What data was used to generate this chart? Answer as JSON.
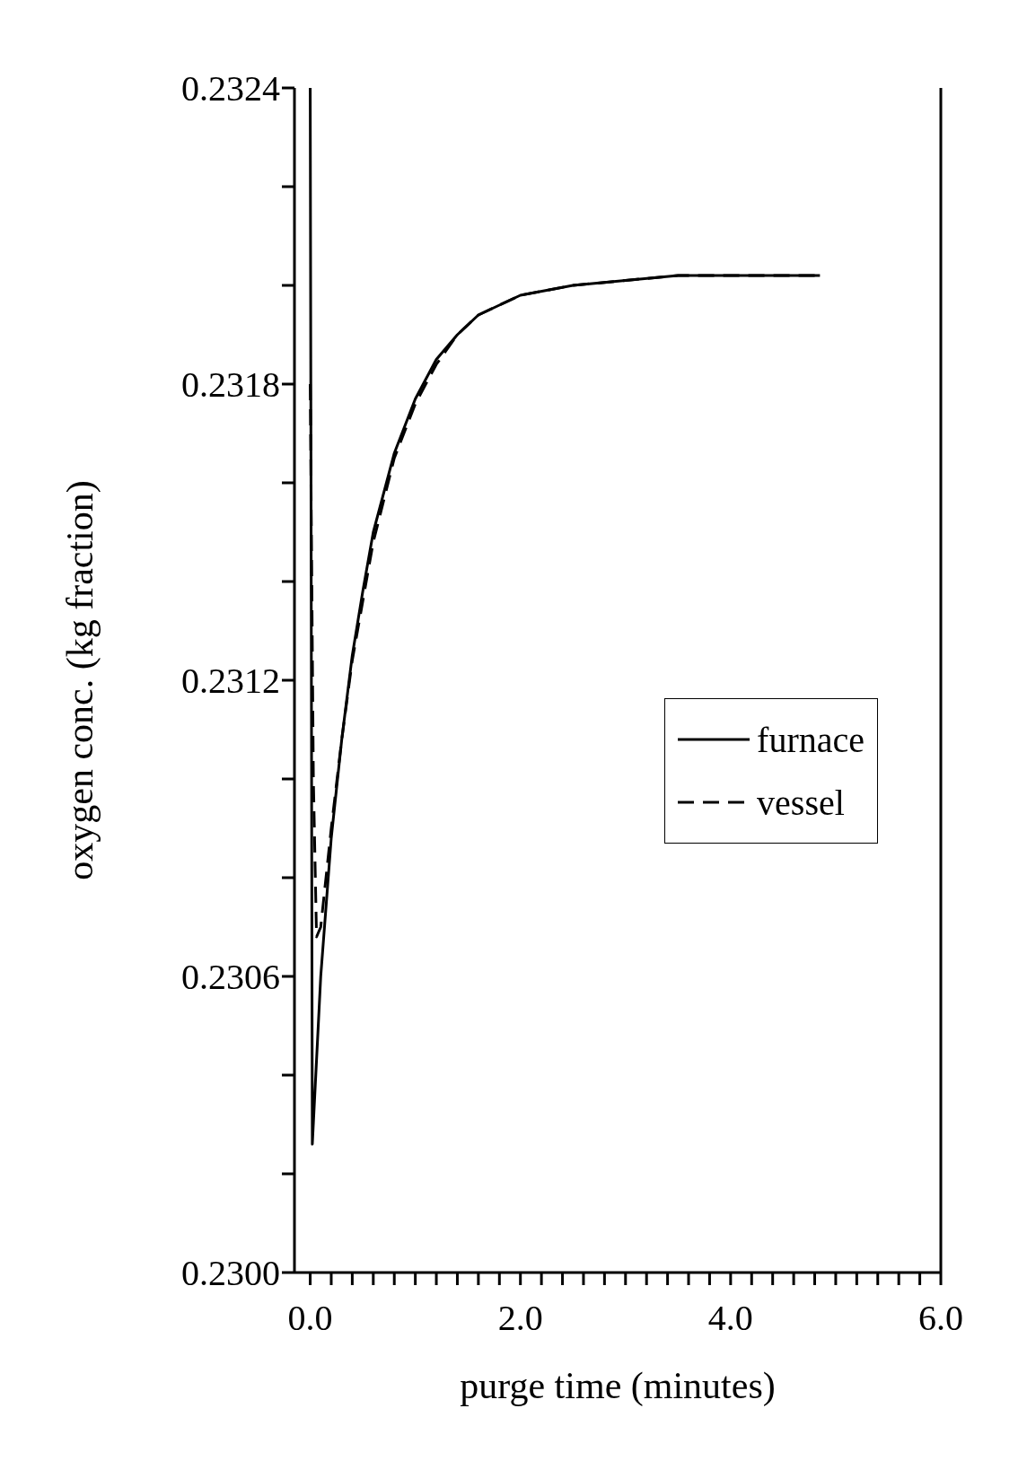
{
  "chart_data": {
    "type": "line",
    "xlabel": "purge time (minutes)",
    "ylabel": "oxygen conc. (kg fraction)",
    "xlim": [
      -0.15,
      6.0
    ],
    "xticks": [
      {
        "value": 0,
        "label": "0.0"
      },
      {
        "value": 0.2,
        "label": null
      },
      {
        "value": 0.4,
        "label": null
      },
      {
        "value": 0.6,
        "label": null
      },
      {
        "value": 0.8,
        "label": null
      },
      {
        "value": 1.0,
        "label": null
      },
      {
        "value": 1.2,
        "label": null
      },
      {
        "value": 1.4,
        "label": null
      },
      {
        "value": 1.6,
        "label": null
      },
      {
        "value": 1.8,
        "label": null
      },
      {
        "value": 2,
        "label": "2.0"
      },
      {
        "value": 2.2,
        "label": null
      },
      {
        "value": 2.4,
        "label": null
      },
      {
        "value": 2.6,
        "label": null
      },
      {
        "value": 2.8,
        "label": null
      },
      {
        "value": 3.0,
        "label": null
      },
      {
        "value": 3.2,
        "label": null
      },
      {
        "value": 3.4,
        "label": null
      },
      {
        "value": 3.6,
        "label": null
      },
      {
        "value": 3.8,
        "label": null
      },
      {
        "value": 4,
        "label": "4.0"
      },
      {
        "value": 4.2,
        "label": null
      },
      {
        "value": 4.4,
        "label": null
      },
      {
        "value": 4.6,
        "label": null
      },
      {
        "value": 4.8,
        "label": null
      },
      {
        "value": 5.0,
        "label": null
      },
      {
        "value": 5.2,
        "label": null
      },
      {
        "value": 5.4,
        "label": null
      },
      {
        "value": 5.6,
        "label": null
      },
      {
        "value": 5.8,
        "label": null
      },
      {
        "value": 6,
        "label": "6.0"
      }
    ],
    "ylim": [
      0.23,
      0.2324
    ],
    "yticks": [
      {
        "value": 0.23,
        "label": "0.2300"
      },
      {
        "value": 0.2302,
        "label": null
      },
      {
        "value": 0.2304,
        "label": null
      },
      {
        "value": 0.2306,
        "label": "0.2306"
      },
      {
        "value": 0.2308,
        "label": null
      },
      {
        "value": 0.231,
        "label": null
      },
      {
        "value": 0.2312,
        "label": "0.2312"
      },
      {
        "value": 0.2314,
        "label": null
      },
      {
        "value": 0.2316,
        "label": null
      },
      {
        "value": 0.2318,
        "label": "0.2318"
      },
      {
        "value": 0.232,
        "label": null
      },
      {
        "value": 0.2322,
        "label": null
      },
      {
        "value": 0.2324,
        "label": "0.2324"
      }
    ],
    "legend": "right",
    "marker": "none",
    "series": [
      {
        "name": "furnace",
        "color": "#000000",
        "line_style": "solid",
        "x": [
          0,
          0.02,
          0.1,
          0.2,
          0.3,
          0.4,
          0.5,
          0.6,
          0.8,
          1.0,
          1.2,
          1.4,
          1.6,
          1.8,
          2.0,
          2.5,
          3.0,
          3.5,
          4.0,
          4.85
        ],
        "values": [
          0.2324,
          0.23026,
          0.2306,
          0.23088,
          0.23108,
          0.23125,
          0.23138,
          0.2315,
          0.23166,
          0.23177,
          0.23185,
          0.2319,
          0.23194,
          0.23196,
          0.23198,
          0.232,
          0.23201,
          0.23202,
          0.23202,
          0.23202
        ]
      },
      {
        "name": "vessel",
        "color": "#000000",
        "line_style": "dashed",
        "x": [
          0,
          0.03,
          0.06,
          0.1,
          0.2,
          0.3,
          0.4,
          0.5,
          0.6,
          0.8,
          1.0,
          1.2,
          1.4,
          1.6,
          1.8,
          2.0,
          2.5,
          3.0,
          3.5,
          4.0,
          4.85
        ],
        "values": [
          0.2318,
          0.231,
          0.23068,
          0.2307,
          0.2309,
          0.23108,
          0.23124,
          0.23136,
          0.23148,
          0.23165,
          0.23176,
          0.23184,
          0.2319,
          0.23194,
          0.23196,
          0.23198,
          0.232,
          0.23201,
          0.23202,
          0.23202,
          0.23202
        ]
      }
    ]
  }
}
